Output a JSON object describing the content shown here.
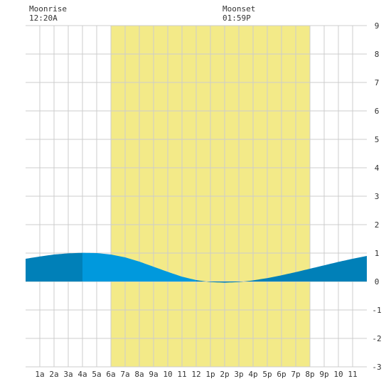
{
  "header": {
    "moonrise_label": "Moonrise",
    "moonrise_time": "12:20A",
    "moonset_label": "Moonset",
    "moonset_time": "01:59P"
  },
  "chart_data": {
    "type": "area",
    "title": "",
    "xlabel": "",
    "ylabel": "",
    "xlim": [
      0,
      24
    ],
    "ylim": [
      -3,
      9
    ],
    "x_ticks": [
      {
        "x": 1,
        "label": "1a"
      },
      {
        "x": 2,
        "label": "2a"
      },
      {
        "x": 3,
        "label": "3a"
      },
      {
        "x": 4,
        "label": "4a"
      },
      {
        "x": 5,
        "label": "5a"
      },
      {
        "x": 6,
        "label": "6a"
      },
      {
        "x": 7,
        "label": "7a"
      },
      {
        "x": 8,
        "label": "8a"
      },
      {
        "x": 9,
        "label": "9a"
      },
      {
        "x": 10,
        "label": "10"
      },
      {
        "x": 11,
        "label": "11"
      },
      {
        "x": 12,
        "label": "12"
      },
      {
        "x": 13,
        "label": "1p"
      },
      {
        "x": 14,
        "label": "2p"
      },
      {
        "x": 15,
        "label": "3p"
      },
      {
        "x": 16,
        "label": "4p"
      },
      {
        "x": 17,
        "label": "5p"
      },
      {
        "x": 18,
        "label": "6p"
      },
      {
        "x": 19,
        "label": "7p"
      },
      {
        "x": 20,
        "label": "8p"
      },
      {
        "x": 21,
        "label": "9p"
      },
      {
        "x": 22,
        "label": "10"
      },
      {
        "x": 23,
        "label": "11"
      }
    ],
    "y_ticks": [
      -3,
      -2,
      -1,
      0,
      1,
      2,
      3,
      4,
      5,
      6,
      7,
      8,
      9
    ],
    "grid": true,
    "daylight_band": {
      "start": 6,
      "end": 20,
      "color": "#f3ea88"
    },
    "moonrise_x": 0.33,
    "moonset_x": 13.98,
    "series": [
      {
        "x": [
          0,
          1,
          2,
          3,
          4,
          5,
          6,
          7,
          8,
          9,
          10,
          11,
          12,
          13,
          14,
          15,
          16,
          17,
          18,
          19,
          20,
          21,
          22,
          23,
          24
        ],
        "values": [
          0.8,
          0.88,
          0.95,
          0.99,
          1.01,
          1.0,
          0.95,
          0.85,
          0.7,
          0.52,
          0.34,
          0.17,
          0.05,
          -0.02,
          -0.04,
          -0.02,
          0.04,
          0.12,
          0.22,
          0.33,
          0.45,
          0.57,
          0.69,
          0.8,
          0.9
        ]
      }
    ],
    "colors": {
      "background": "#ffffff",
      "grid": "#cccccc",
      "night_fill": "#0080b8",
      "day_fill": "#0099dd",
      "text": "#333333"
    }
  }
}
